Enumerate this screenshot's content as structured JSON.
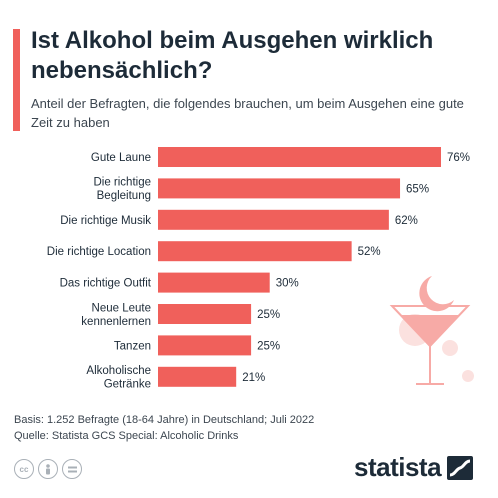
{
  "title": "Ist Alkohol beim Ausgehen wirklich nebensächlich?",
  "subtitle": "Anteil der Befragten, die folgendes brauchen, um beim Ausgehen eine gute Zeit zu haben",
  "chart_data": {
    "type": "bar",
    "orientation": "horizontal",
    "categories": [
      [
        "Gute Laune"
      ],
      [
        "Die richtige",
        "Begleitung"
      ],
      [
        "Die richtige Musik"
      ],
      [
        "Die richtige Location"
      ],
      [
        "Das richtige Outfit"
      ],
      [
        "Neue Leute",
        "kennenlernen"
      ],
      [
        "Tanzen"
      ],
      [
        "Alkoholische",
        "Getränke"
      ]
    ],
    "values": [
      76,
      65,
      62,
      52,
      30,
      25,
      25,
      21
    ],
    "value_suffix": "%",
    "bar_color": "#f0605b",
    "xlim": [
      0,
      76
    ],
    "grid": false,
    "legend": "none"
  },
  "footer": {
    "basis": "Basis: 1.252 Befragte (18-64 Jahre) in Deutschland; Juli 2022",
    "source": "Quelle: Statista GCS Special: Alcoholic Drinks"
  },
  "license_icons": [
    "cc-icon",
    "person-icon",
    "equals-icon"
  ],
  "brand": {
    "name": "statista",
    "color": "#1d2b38"
  }
}
